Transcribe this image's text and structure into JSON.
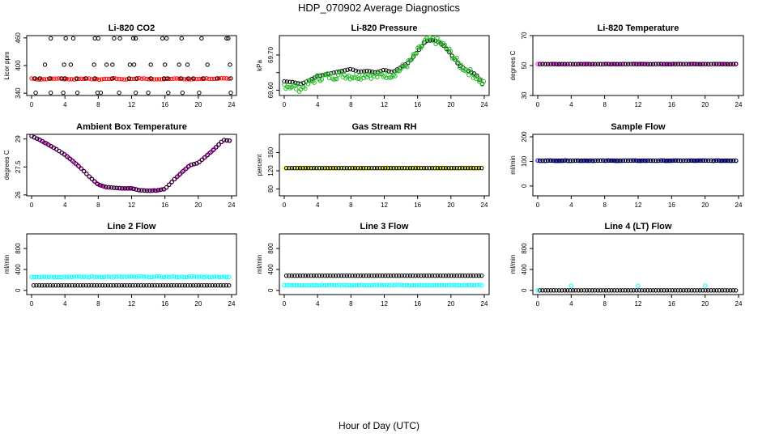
{
  "title": "HDP_070902  Average Diagnostics",
  "xlabel": "Hour of Day (UTC)",
  "colors": {
    "black": "#000000",
    "red": "#ff0000",
    "green": "#22bb22",
    "magenta": "#ff00ff",
    "yellow": "#ffff00",
    "blue": "#0000ff",
    "cyan": "#00ffff"
  },
  "chart_data": [
    {
      "type": "scatter",
      "title": "Li-820 CO2",
      "ylabel": "Licor ppm",
      "xlim": [
        0,
        24
      ],
      "ylim": [
        335,
        465
      ],
      "xticks": [
        0,
        4,
        8,
        12,
        16,
        20,
        24
      ],
      "yticks": [
        340,
        400,
        460
      ],
      "series": [
        {
          "name": "avg",
          "color": "red",
          "style": "dense",
          "y": [
            372,
            370,
            371,
            372,
            371,
            370,
            372,
            371,
            370,
            371,
            372,
            370,
            371,
            372,
            371,
            370,
            371,
            372,
            371,
            370,
            371,
            372,
            371,
            372,
            371
          ]
        },
        {
          "name": "max",
          "color": "black",
          "x": [
            1.0,
            2.3,
            4.1,
            5.0,
            7.6,
            8.0,
            9.9,
            10.6,
            12.2,
            12.5,
            15.7,
            16.2,
            18.0,
            20.4,
            23.4,
            23.6
          ],
          "y": [
            372,
            459,
            459,
            459,
            459,
            459,
            459,
            459,
            459,
            459,
            459,
            459,
            459,
            459,
            459,
            459
          ]
        },
        {
          "name": "mid",
          "color": "black",
          "x": [
            1.6,
            3.9,
            4.7,
            7.5,
            9.0,
            9.7,
            11.8,
            12.3,
            14.3,
            16.0,
            17.7,
            18.7,
            21.1,
            23.8
          ],
          "y": [
            402,
            402,
            402,
            402,
            402,
            402,
            402,
            402,
            402,
            402,
            402,
            402,
            402,
            402
          ]
        },
        {
          "name": "lo",
          "color": "black",
          "x": [
            0.4,
            2.2,
            3.6,
            4.0,
            5.4,
            6.5,
            7.6,
            9.7,
            11.7,
            12.6,
            14.3,
            15.9,
            16.3,
            17.9,
            18.8,
            19.4,
            20.6,
            22.3,
            23.9
          ],
          "y": [
            372,
            372,
            372,
            372,
            372,
            372,
            372,
            372,
            372,
            372,
            372,
            372,
            372,
            372,
            372,
            372,
            372,
            372,
            372
          ]
        },
        {
          "name": "min",
          "color": "black",
          "x": [
            0.5,
            2.3,
            3.8,
            5.5,
            7.9,
            8.3,
            10.5,
            12.5,
            14.0,
            16.4,
            18.1,
            20.1,
            23.9
          ],
          "y": [
            341,
            341,
            341,
            341,
            341,
            341,
            341,
            341,
            341,
            341,
            341,
            341,
            341
          ]
        }
      ]
    },
    {
      "type": "scatter",
      "title": "Li-820 Pressure",
      "ylabel": "kPa",
      "xlim": [
        0,
        24
      ],
      "ylim": [
        69.585,
        69.755
      ],
      "xticks": [
        0,
        4,
        8,
        12,
        16,
        20,
        24
      ],
      "yticks": [
        69.6,
        69.65,
        69.7
      ],
      "ytick_labels": [
        "69.60",
        "",
        "69.70"
      ],
      "series": [
        {
          "name": "hourly",
          "color": "black",
          "hours": [
            0,
            1,
            2,
            3,
            4,
            5,
            6,
            7,
            8,
            9,
            10,
            11,
            12,
            13,
            14,
            15,
            16,
            17,
            18,
            19,
            20,
            21,
            22,
            23,
            24
          ],
          "y": [
            69.625,
            69.623,
            69.618,
            69.628,
            69.64,
            69.645,
            69.65,
            69.655,
            69.66,
            69.652,
            69.655,
            69.65,
            69.658,
            69.651,
            69.665,
            69.68,
            69.71,
            69.74,
            69.742,
            69.73,
            69.702,
            69.67,
            69.656,
            69.645,
            69.61
          ]
        },
        {
          "name": "samples",
          "color": "green",
          "style": "noisy",
          "hours": [
            0,
            1,
            2,
            3,
            4,
            5,
            6,
            7,
            8,
            9,
            10,
            11,
            12,
            13,
            14,
            15,
            16,
            17,
            18,
            19,
            20,
            21,
            22,
            23,
            24
          ],
          "y": [
            69.615,
            69.61,
            69.605,
            69.62,
            69.635,
            69.64,
            69.64,
            69.645,
            69.64,
            69.64,
            69.645,
            69.64,
            69.643,
            69.645,
            69.66,
            69.678,
            69.71,
            69.74,
            69.742,
            69.73,
            69.705,
            69.672,
            69.655,
            69.64,
            69.615
          ]
        }
      ]
    },
    {
      "type": "scatter",
      "title": "Li-820 Temperature",
      "ylabel": "degrees C",
      "xlim": [
        0,
        24
      ],
      "ylim": [
        30,
        70
      ],
      "xticks": [
        0,
        4,
        8,
        12,
        16,
        20,
        24
      ],
      "yticks": [
        30,
        50,
        70
      ],
      "series": [
        {
          "name": "samples",
          "color": "magenta",
          "style": "dense",
          "y": [
            51,
            51,
            51,
            51,
            51,
            51,
            51,
            51,
            51,
            51,
            51,
            51,
            51,
            51,
            51,
            51,
            51,
            51,
            51,
            51,
            51,
            51,
            51,
            51,
            51
          ]
        },
        {
          "name": "hourly",
          "color": "black",
          "y": [
            51,
            51,
            51,
            51,
            51,
            51,
            51,
            51,
            51,
            51,
            51,
            51,
            51,
            51,
            51,
            51,
            51,
            51,
            51,
            51,
            51,
            51,
            51,
            51,
            51
          ]
        }
      ]
    },
    {
      "type": "scatter",
      "title": "Ambient Box Temperature",
      "ylabel": "degrees C",
      "xlim": [
        0,
        24
      ],
      "ylim": [
        25.95,
        29.25
      ],
      "xticks": [
        0,
        4,
        8,
        12,
        16,
        20,
        24
      ],
      "yticks": [
        26.0,
        27.5,
        29.0
      ],
      "series": [
        {
          "name": "samples",
          "color": "magenta",
          "style": "dense",
          "hours": [
            0,
            1,
            2,
            3,
            4,
            5,
            6,
            7,
            8,
            9,
            10,
            11,
            12,
            13,
            14,
            15,
            16,
            17,
            18,
            19,
            20,
            21,
            22,
            23,
            24
          ],
          "y": [
            29.15,
            28.95,
            28.7,
            28.45,
            28.15,
            27.8,
            27.4,
            26.95,
            26.55,
            26.42,
            26.38,
            26.35,
            26.35,
            26.25,
            26.22,
            26.24,
            26.32,
            26.78,
            27.2,
            27.6,
            27.72,
            28.1,
            28.5,
            28.95,
            28.9
          ]
        },
        {
          "name": "hourly",
          "color": "black",
          "hours": [
            0,
            1,
            2,
            3,
            4,
            5,
            6,
            7,
            8,
            9,
            10,
            11,
            12,
            13,
            14,
            15,
            16,
            17,
            18,
            19,
            20,
            21,
            22,
            23,
            24
          ],
          "y": [
            29.15,
            28.95,
            28.7,
            28.45,
            28.15,
            27.8,
            27.4,
            26.95,
            26.55,
            26.42,
            26.38,
            26.35,
            26.35,
            26.25,
            26.22,
            26.24,
            26.32,
            26.78,
            27.2,
            27.6,
            27.72,
            28.1,
            28.5,
            28.95,
            28.9
          ]
        }
      ]
    },
    {
      "type": "scatter",
      "title": "Gas Stream RH",
      "ylabel": "percent",
      "xlim": [
        0,
        24
      ],
      "ylim": [
        65,
        200
      ],
      "xticks": [
        0,
        4,
        8,
        12,
        16,
        20,
        24
      ],
      "yticks": [
        80,
        120,
        160
      ],
      "series": [
        {
          "name": "samples",
          "color": "yellow",
          "style": "dense",
          "y": [
            126,
            126,
            126,
            126,
            126,
            126,
            126,
            126,
            126,
            126,
            126,
            126,
            126,
            126,
            126,
            126,
            126,
            126,
            126,
            126,
            126,
            126,
            126,
            126,
            126
          ]
        },
        {
          "name": "hourly",
          "color": "black",
          "y": [
            126,
            126,
            126,
            126,
            126,
            126,
            126,
            126,
            126,
            126,
            126,
            126,
            126,
            126,
            126,
            126,
            126,
            126,
            126,
            126,
            126,
            126,
            126,
            126,
            126
          ]
        }
      ]
    },
    {
      "type": "scatter",
      "title": "Sample Flow",
      "ylabel": "ml/min",
      "xlim": [
        0,
        24
      ],
      "ylim": [
        -40,
        210
      ],
      "xticks": [
        0,
        4,
        8,
        12,
        16,
        20,
        24
      ],
      "yticks": [
        0,
        100,
        200
      ],
      "series": [
        {
          "name": "samples",
          "color": "blue",
          "style": "dense",
          "y": [
            103,
            103,
            103,
            103,
            103,
            103,
            103,
            103,
            103,
            103,
            103,
            103,
            103,
            103,
            103,
            103,
            103,
            103,
            103,
            103,
            103,
            103,
            103,
            103,
            103
          ]
        },
        {
          "name": "hourly",
          "color": "black",
          "y": [
            103,
            103,
            103,
            103,
            103,
            103,
            103,
            103,
            103,
            103,
            103,
            103,
            103,
            103,
            103,
            103,
            103,
            103,
            103,
            103,
            103,
            103,
            103,
            103,
            103
          ]
        }
      ]
    },
    {
      "type": "scatter",
      "title": "Line 2 Flow",
      "ylabel": "ml/min",
      "xlim": [
        0,
        24
      ],
      "ylim": [
        -80,
        1080
      ],
      "xticks": [
        0,
        4,
        8,
        12,
        16,
        20,
        24
      ],
      "yticks": [
        0,
        400,
        800
      ],
      "series": [
        {
          "name": "samples",
          "color": "cyan",
          "style": "dense",
          "y": [
            260,
            260,
            260,
            260,
            260,
            260,
            260,
            260,
            260,
            260,
            260,
            260,
            260,
            260,
            260,
            260,
            260,
            260,
            260,
            260,
            260,
            260,
            260,
            260,
            260
          ]
        },
        {
          "name": "hourly",
          "color": "black",
          "y": [
            95,
            95,
            95,
            95,
            95,
            95,
            95,
            95,
            95,
            95,
            95,
            95,
            95,
            95,
            95,
            95,
            95,
            95,
            95,
            95,
            95,
            95,
            95,
            95,
            95
          ]
        }
      ]
    },
    {
      "type": "scatter",
      "title": "Line 3 Flow",
      "ylabel": "ml/min",
      "xlim": [
        0,
        24
      ],
      "ylim": [
        -80,
        1080
      ],
      "xticks": [
        0,
        4,
        8,
        12,
        16,
        20,
        24
      ],
      "yticks": [
        0,
        400,
        800
      ],
      "series": [
        {
          "name": "samples",
          "color": "cyan",
          "style": "dense",
          "y": [
            100,
            100,
            100,
            100,
            100,
            100,
            100,
            100,
            100,
            100,
            100,
            100,
            100,
            100,
            100,
            100,
            100,
            100,
            100,
            100,
            100,
            100,
            100,
            100,
            100
          ]
        },
        {
          "name": "hourly",
          "color": "black",
          "y": [
            280,
            280,
            280,
            280,
            280,
            280,
            280,
            280,
            280,
            280,
            280,
            280,
            280,
            280,
            280,
            280,
            280,
            280,
            280,
            280,
            280,
            280,
            280,
            280,
            280
          ]
        }
      ]
    },
    {
      "type": "scatter",
      "title": "Line 4 (LT) Flow",
      "ylabel": "ml/min",
      "xlim": [
        0,
        24
      ],
      "ylim": [
        -80,
        1080
      ],
      "xticks": [
        0,
        4,
        8,
        12,
        16,
        20,
        24
      ],
      "yticks": [
        0,
        400,
        800
      ],
      "series": [
        {
          "name": "hourly",
          "color": "black",
          "y": [
            0,
            0,
            0,
            0,
            0,
            0,
            0,
            0,
            0,
            0,
            0,
            0,
            0,
            0,
            0,
            0,
            0,
            0,
            0,
            0,
            0,
            0,
            0,
            0,
            0
          ]
        },
        {
          "name": "spikes",
          "color": "cyan",
          "x": [
            0.0,
            4.0,
            12.0,
            20.0
          ],
          "y": [
            0,
            90,
            90,
            90
          ]
        }
      ]
    }
  ]
}
